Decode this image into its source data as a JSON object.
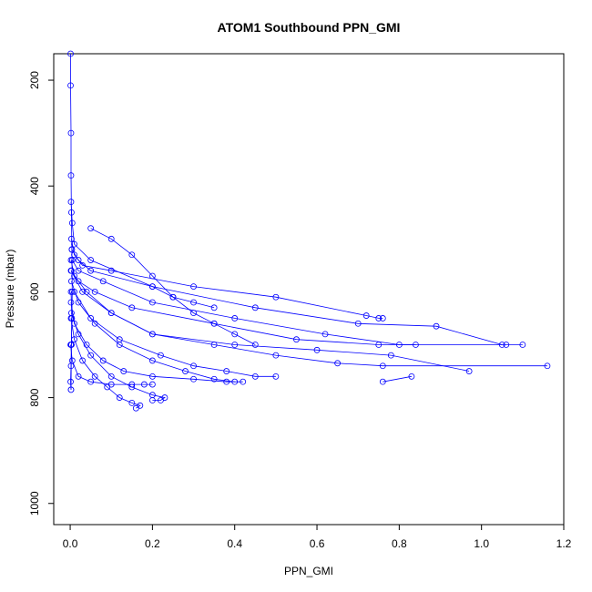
{
  "chart_data": {
    "type": "line",
    "title": "ATOM1 Southbound PPN_GMI",
    "xlabel": "PPN_GMI",
    "ylabel": "Pressure (mbar)",
    "xlim": [
      -0.04,
      1.2
    ],
    "ylim": [
      1040,
      150
    ],
    "y_reversed": true,
    "x_ticks": [
      0.0,
      0.2,
      0.4,
      0.6,
      0.8,
      1.0,
      1.2
    ],
    "x_tick_labels": [
      "0.0",
      "0.2",
      "0.4",
      "0.6",
      "0.8",
      "1.0",
      "1.2"
    ],
    "y_ticks": [
      200,
      400,
      600,
      800,
      1000
    ],
    "y_tick_labels": [
      "200",
      "400",
      "600",
      "800",
      "1000"
    ],
    "grid": false,
    "legend": "none",
    "series_color": "#0000ff",
    "marker": "open-circle",
    "series": [
      {
        "x": [
          0.001,
          0.001,
          0.002,
          0.002,
          0.003,
          0.004,
          0.005,
          0.003,
          0.002
        ],
        "y": [
          150,
          210,
          300,
          380,
          450,
          520,
          600,
          700,
          785
        ]
      },
      {
        "x": [
          0.002,
          0.005,
          0.01,
          0.05,
          0.2,
          0.25,
          0.3,
          0.35
        ],
        "y": [
          430,
          470,
          510,
          540,
          590,
          610,
          620,
          630
        ]
      },
      {
        "x": [
          0.003,
          0.01,
          0.03,
          0.1,
          0.3,
          0.5,
          0.72,
          0.75,
          0.76
        ],
        "y": [
          500,
          530,
          550,
          560,
          590,
          610,
          645,
          650,
          650
        ]
      },
      {
        "x": [
          0.004,
          0.02,
          0.05,
          0.2,
          0.45,
          0.7,
          0.89,
          1.05
        ],
        "y": [
          520,
          540,
          560,
          590,
          630,
          660,
          665,
          700
        ]
      },
      {
        "x": [
          0.005,
          0.02,
          0.08,
          0.2,
          0.4,
          0.62,
          0.8,
          1.06,
          1.1
        ],
        "y": [
          540,
          560,
          580,
          620,
          650,
          680,
          700,
          700,
          700
        ]
      },
      {
        "x": [
          0.003,
          0.02,
          0.06,
          0.15,
          0.35,
          0.55,
          0.75,
          0.84
        ],
        "y": [
          560,
          580,
          600,
          630,
          660,
          690,
          700,
          700
        ]
      },
      {
        "x": [
          0.002,
          0.01,
          0.04,
          0.1,
          0.2,
          0.4,
          0.6,
          0.78,
          0.97
        ],
        "y": [
          540,
          570,
          600,
          640,
          680,
          700,
          710,
          720,
          750
        ]
      },
      {
        "x": [
          0.002,
          0.03,
          0.1,
          0.2,
          0.35,
          0.5,
          0.65,
          0.76,
          1.16
        ],
        "y": [
          560,
          600,
          640,
          680,
          700,
          720,
          735,
          740,
          740
        ]
      },
      {
        "x": [
          0.01,
          0.05,
          0.12,
          0.22,
          0.3,
          0.38,
          0.45,
          0.5
        ],
        "y": [
          600,
          650,
          690,
          720,
          740,
          750,
          760,
          760
        ]
      },
      {
        "x": [
          0.003,
          0.02,
          0.05,
          0.1,
          0.15,
          0.2,
          0.23,
          0.22,
          0.2
        ],
        "y": [
          640,
          680,
          720,
          760,
          780,
          795,
          800,
          805,
          805
        ]
      },
      {
        "x": [
          0.002,
          0.01,
          0.03,
          0.06,
          0.09,
          0.12,
          0.15,
          0.17,
          0.16
        ],
        "y": [
          650,
          690,
          730,
          760,
          780,
          800,
          810,
          815,
          820
        ]
      },
      {
        "x": [
          0.002,
          0.01,
          0.04,
          0.08,
          0.13,
          0.2,
          0.3,
          0.38,
          0.42
        ],
        "y": [
          620,
          660,
          700,
          730,
          750,
          760,
          765,
          770,
          770
        ]
      },
      {
        "x": [
          0.001,
          0.005,
          0.02,
          0.05,
          0.1,
          0.15,
          0.18,
          0.2
        ],
        "y": [
          700,
          730,
          760,
          770,
          775,
          775,
          775,
          775
        ]
      },
      {
        "x": [
          0.003,
          0.02,
          0.06,
          0.12,
          0.2,
          0.28,
          0.35,
          0.4
        ],
        "y": [
          580,
          620,
          660,
          700,
          730,
          750,
          765,
          770
        ]
      },
      {
        "x": [
          0.76,
          0.83
        ],
        "y": [
          770,
          760
        ]
      },
      {
        "x": [
          0.002,
          0.004,
          0.003,
          0.002,
          0.001,
          0.002
        ],
        "y": [
          600,
          650,
          700,
          740,
          770,
          785
        ]
      },
      {
        "x": [
          0.05,
          0.1,
          0.15,
          0.2,
          0.25,
          0.3,
          0.35,
          0.4,
          0.45
        ],
        "y": [
          480,
          500,
          530,
          570,
          610,
          640,
          660,
          680,
          700
        ]
      }
    ]
  }
}
